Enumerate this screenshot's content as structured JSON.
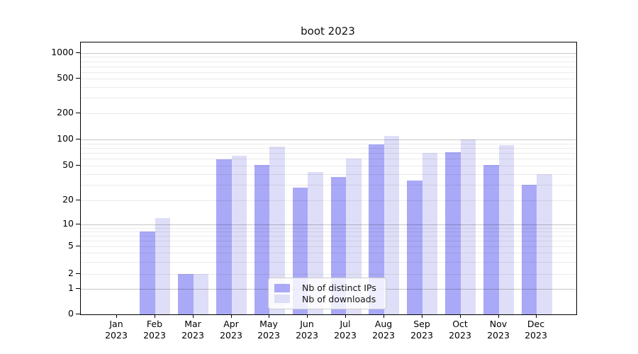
{
  "chart_data": {
    "type": "bar",
    "title": "boot 2023",
    "x_categories": [
      "Jan",
      "Feb",
      "Mar",
      "Apr",
      "May",
      "Jun",
      "Jul",
      "Aug",
      "Sep",
      "Oct",
      "Nov",
      "Dec"
    ],
    "x_year": "2023",
    "yscale": "symlog",
    "ylim": [
      0,
      1000
    ],
    "ytick_labels": [
      "0",
      "1",
      "2",
      "5",
      "10",
      "20",
      "50",
      "100",
      "200",
      "500",
      "1000"
    ],
    "grid": true,
    "legend_position": "lower center",
    "series": [
      {
        "name": "Nb of distinct IPs",
        "color": "#a9a9f7",
        "values": [
          0,
          8,
          2,
          59,
          51,
          28,
          37,
          88,
          34,
          71,
          51,
          30
        ]
      },
      {
        "name": "Nb of downloads",
        "color": "#dedef8",
        "values": [
          0,
          12,
          2,
          65,
          83,
          42,
          60,
          110,
          70,
          101,
          86,
          40
        ]
      }
    ]
  },
  "colors": {
    "background": "#ffffff",
    "axis": "#000000",
    "major_gridline": "#c7c7c7",
    "minor_gridline": "#ebebeb",
    "legend_border": "#cccccc",
    "text": "#000000"
  }
}
